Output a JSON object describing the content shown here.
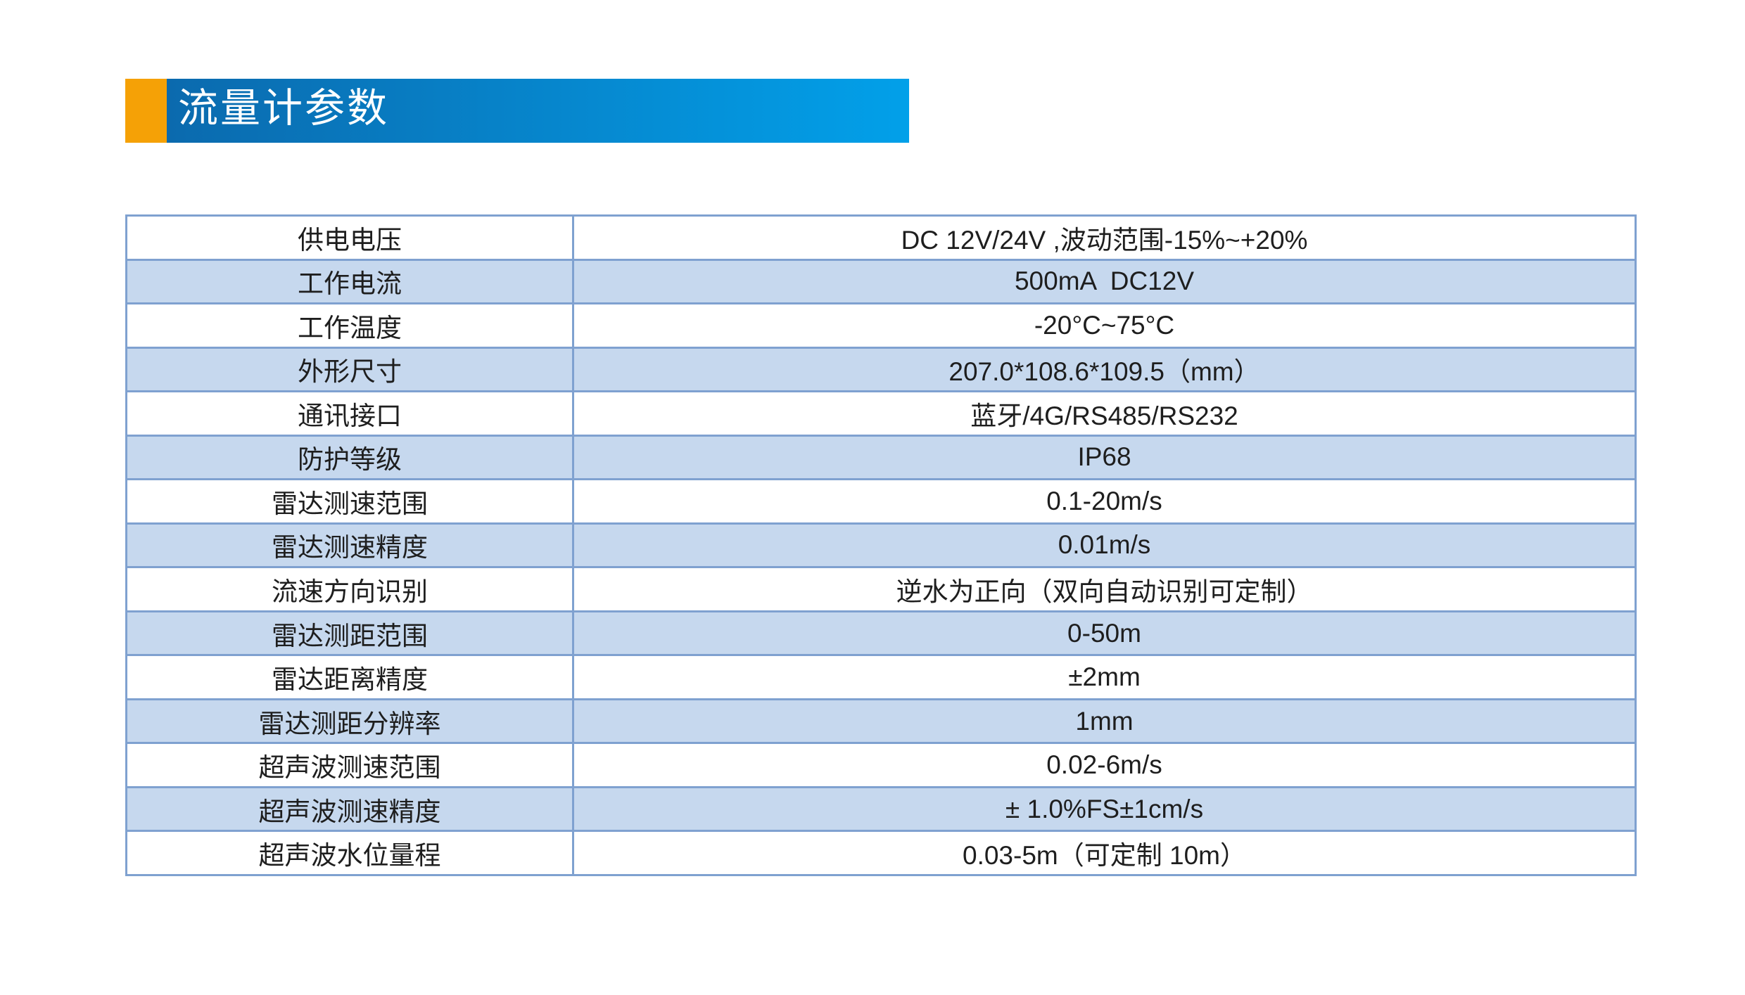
{
  "page": {
    "background": "#ffffff"
  },
  "header": {
    "title": "流量计参数",
    "accent_color": "#F5A106",
    "bar_gradient_start": "#0B6AAE",
    "bar_gradient_end": "#02A0E9",
    "title_color": "#ffffff"
  },
  "table": {
    "border_color": "#7FA1D0",
    "alt_row_color": "#C6D8EE",
    "text_color": "#1E1E1E",
    "rows": [
      {
        "label": "供电电压",
        "value": "DC 12V/24V ,波动范围-15%~+20%"
      },
      {
        "label": "工作电流",
        "value": "500mA  DC12V"
      },
      {
        "label": "工作温度",
        "value": "-20°C~75°C"
      },
      {
        "label": "外形尺寸",
        "value": "207.0*108.6*109.5（mm）"
      },
      {
        "label": "通讯接口",
        "value": "蓝牙/4G/RS485/RS232"
      },
      {
        "label": "防护等级",
        "value": "IP68"
      },
      {
        "label": "雷达测速范围",
        "value": "0.1-20m/s"
      },
      {
        "label": "雷达测速精度",
        "value": "0.01m/s"
      },
      {
        "label": "流速方向识别",
        "value": "逆水为正向（双向自动识别可定制）"
      },
      {
        "label": "雷达测距范围",
        "value": "0-50m"
      },
      {
        "label": "雷达距离精度",
        "value": "±2mm"
      },
      {
        "label": "雷达测距分辨率",
        "value": "1mm"
      },
      {
        "label": "超声波测速范围",
        "value": "0.02-6m/s"
      },
      {
        "label": "超声波测速精度",
        "value": "± 1.0%FS±1cm/s"
      },
      {
        "label": "超声波水位量程",
        "value": "0.03-5m（可定制 10m）"
      }
    ]
  }
}
